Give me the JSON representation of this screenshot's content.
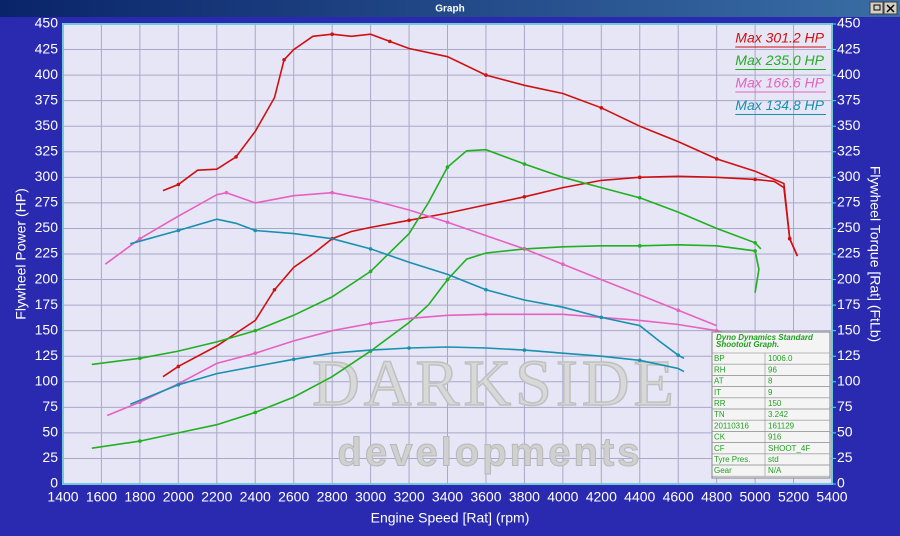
{
  "window": {
    "title": "Graph"
  },
  "chart_data": {
    "type": "line",
    "xlabel": "Engine Speed [Rat] (rpm)",
    "ylabel": "Flywheel Power (HP)",
    "y2label": "Flywheel Torque [Rat] (FtLb)",
    "xlim": [
      1400,
      5400
    ],
    "xticks": [
      1400,
      1600,
      1800,
      2000,
      2200,
      2400,
      2600,
      2800,
      3000,
      3200,
      3400,
      3600,
      3800,
      4000,
      4200,
      4400,
      4600,
      4800,
      5000,
      5200,
      5400
    ],
    "ylim": [
      0,
      450
    ],
    "yticks": [
      0,
      25,
      50,
      75,
      100,
      125,
      150,
      175,
      200,
      225,
      250,
      275,
      300,
      325,
      350,
      375,
      400,
      425,
      450
    ],
    "y2lim": [
      0,
      450
    ],
    "y2ticks": [
      0,
      25,
      50,
      75,
      100,
      125,
      150,
      175,
      200,
      225,
      250,
      275,
      300,
      325,
      350,
      375,
      400,
      425,
      450
    ],
    "grid": true,
    "legend": "top-right",
    "series": [
      {
        "name": "Max 301.2 HP",
        "color": "#d01010",
        "x": [
          1920,
          2000,
          2200,
          2400,
          2500,
          2600,
          2700,
          2800,
          2900,
          3000,
          3200,
          3400,
          3600,
          3800,
          4000,
          4200,
          4400,
          4600,
          4800,
          5000,
          5100,
          5150,
          5180,
          5220
        ],
        "values": [
          105,
          115,
          135,
          160,
          190,
          212,
          225,
          240,
          247,
          251,
          258,
          265,
          273,
          281,
          290,
          297,
          300,
          301,
          300,
          298,
          296,
          290,
          240,
          223
        ]
      },
      {
        "name": "Max 235.0 HP",
        "color": "#20b020",
        "x": [
          1550,
          1800,
          2000,
          2200,
          2400,
          2600,
          2800,
          3000,
          3200,
          3300,
          3400,
          3500,
          3600,
          3800,
          4000,
          4200,
          4400,
          4600,
          4800,
          5000,
          5020,
          5000
        ],
        "values": [
          35,
          42,
          50,
          58,
          70,
          85,
          105,
          130,
          158,
          175,
          200,
          220,
          226,
          230,
          232,
          233,
          233,
          234,
          233,
          228,
          210,
          187
        ]
      },
      {
        "name": "Max 166.6 HP",
        "color": "#e860c0",
        "x": [
          1630,
          1800,
          2000,
          2200,
          2400,
          2600,
          2800,
          3000,
          3200,
          3400,
          3600,
          3800,
          4000,
          4200,
          4400,
          4600,
          4800,
          4850
        ],
        "values": [
          67,
          80,
          98,
          118,
          128,
          140,
          150,
          157,
          162,
          165,
          166,
          166,
          166,
          163,
          160,
          156,
          150,
          147
        ]
      },
      {
        "name": "Max 134.8 HP",
        "color": "#1890b0",
        "x": [
          1750,
          2000,
          2200,
          2400,
          2600,
          2800,
          3000,
          3200,
          3400,
          3600,
          3800,
          4000,
          4200,
          4400,
          4600,
          4630
        ],
        "values": [
          78,
          97,
          108,
          115,
          122,
          128,
          131,
          133,
          134,
          133,
          131,
          128,
          125,
          121,
          113,
          110
        ]
      },
      {
        "color": "#d01010",
        "axis": "y2",
        "x": [
          1920,
          2000,
          2100,
          2200,
          2300,
          2400,
          2500,
          2550,
          2600,
          2700,
          2800,
          2900,
          3000,
          3100,
          3200,
          3400,
          3600,
          3800,
          4000,
          4200,
          4400,
          4600,
          4800,
          5000,
          5150,
          5180,
          5220
        ],
        "values": [
          287,
          293,
          307,
          308,
          320,
          345,
          378,
          415,
          425,
          438,
          440,
          438,
          440,
          433,
          426,
          418,
          400,
          390,
          382,
          368,
          350,
          335,
          318,
          306,
          294,
          240,
          223
        ]
      },
      {
        "color": "#20b020",
        "axis": "y2",
        "x": [
          1550,
          1800,
          2000,
          2200,
          2400,
          2600,
          2800,
          3000,
          3200,
          3300,
          3400,
          3500,
          3600,
          3800,
          4000,
          4200,
          4400,
          4600,
          4800,
          5000,
          5030
        ],
        "values": [
          117,
          123,
          130,
          139,
          150,
          165,
          183,
          208,
          245,
          275,
          310,
          326,
          327,
          313,
          300,
          290,
          280,
          266,
          250,
          236,
          230
        ]
      },
      {
        "color": "#e860c0",
        "axis": "y2",
        "x": [
          1620,
          1800,
          2000,
          2200,
          2250,
          2400,
          2600,
          2800,
          3000,
          3200,
          3400,
          3600,
          3800,
          4000,
          4200,
          4400,
          4600,
          4800
        ],
        "values": [
          215,
          240,
          262,
          283,
          285,
          275,
          282,
          285,
          278,
          268,
          256,
          243,
          230,
          215,
          200,
          185,
          170,
          155
        ]
      },
      {
        "color": "#1890b0",
        "axis": "y2",
        "x": [
          1750,
          2000,
          2200,
          2300,
          2400,
          2600,
          2800,
          3000,
          3200,
          3400,
          3600,
          3800,
          4000,
          4200,
          4400,
          4500,
          4600,
          4630
        ],
        "values": [
          235,
          248,
          259,
          255,
          248,
          245,
          240,
          230,
          217,
          205,
          190,
          180,
          173,
          163,
          155,
          140,
          126,
          123
        ]
      }
    ],
    "watermark": [
      "DARKSIDE",
      "developments"
    ],
    "info_table": {
      "title": [
        "Dyno Dynamics Standard",
        "Shootout Graph."
      ],
      "rows": [
        [
          "BP",
          "1006.0"
        ],
        [
          "RH",
          "96"
        ],
        [
          "AT",
          "8"
        ],
        [
          "IT",
          "9"
        ],
        [
          "RR",
          "150"
        ],
        [
          "TN",
          "3.242"
        ],
        [
          "20110316",
          "161129"
        ],
        [
          "CK",
          "916"
        ],
        [
          "CF",
          "SHOOT_4F"
        ],
        [
          "Tyre Pres.",
          "std"
        ],
        [
          "Gear",
          "N/A"
        ]
      ]
    }
  }
}
